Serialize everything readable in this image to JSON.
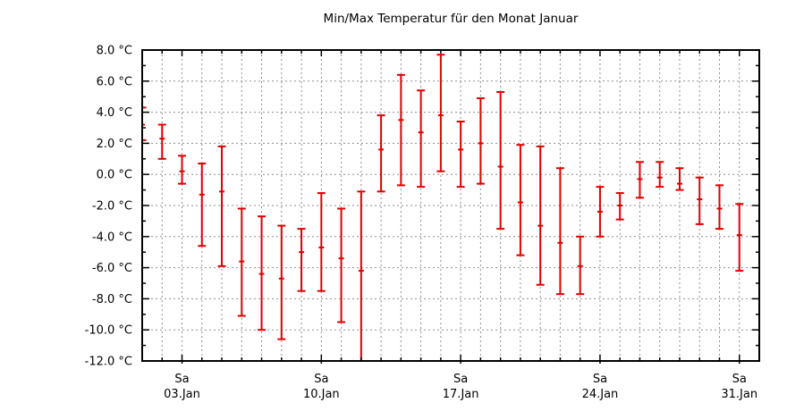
{
  "title": "Min/Max Temperatur für den Monat Januar",
  "colors": {
    "bar": "#e00000",
    "grid": "#8f8f8f",
    "axis": "#000000",
    "text": "#000000",
    "background": "#ffffff"
  },
  "chart_data": {
    "type": "errorbar",
    "title": "Min/Max Temperatur für den Monat Januar",
    "xlabel": "",
    "ylabel": "",
    "x_range": [
      "01.Jan",
      "01.Feb"
    ],
    "ylim": [
      -12.0,
      8.0
    ],
    "y_major_step": 2,
    "y_minor_step": 1,
    "y_tick_labels": [
      "8.0 °C",
      "6.0 °C",
      "4.0 °C",
      "2.0 °C",
      "0.0 °C",
      "-2.0 °C",
      "-4.0 °C",
      "-6.0 °C",
      "-8.0 °C",
      "-10.0 °C",
      "-12.0 °C"
    ],
    "x_major_ticks": [
      {
        "day": 3,
        "weekday": "Sa",
        "date": "03.Jan"
      },
      {
        "day": 10,
        "weekday": "Sa",
        "date": "10.Jan"
      },
      {
        "day": 17,
        "weekday": "Sa",
        "date": "17.Jan"
      },
      {
        "day": 24,
        "weekday": "Sa",
        "date": "24.Jan"
      },
      {
        "day": 31,
        "weekday": "Sa",
        "date": "31.Jan"
      }
    ],
    "grid": true,
    "legend": "none",
    "days": [
      1,
      2,
      3,
      4,
      5,
      6,
      7,
      8,
      9,
      10,
      11,
      12,
      13,
      14,
      15,
      16,
      17,
      18,
      19,
      20,
      21,
      22,
      23,
      24,
      25,
      26,
      27,
      28,
      29,
      30,
      31
    ],
    "max": [
      4.3,
      3.2,
      1.2,
      0.7,
      1.8,
      -2.2,
      -2.7,
      -3.3,
      -3.5,
      -1.2,
      -2.2,
      -1.1,
      3.8,
      6.4,
      5.4,
      7.7,
      3.4,
      4.9,
      5.3,
      1.9,
      1.8,
      0.4,
      -4.0,
      -0.8,
      -1.2,
      0.8,
      0.8,
      0.4,
      -0.2,
      -0.7,
      -1.9
    ],
    "avg": [
      3.2,
      2.3,
      0.2,
      -1.3,
      -1.1,
      -5.6,
      -6.4,
      -6.7,
      -5.0,
      -4.7,
      -5.4,
      -6.2,
      1.6,
      3.5,
      2.7,
      3.8,
      1.6,
      2.0,
      0.5,
      -1.8,
      -3.3,
      -4.4,
      -5.9,
      -2.4,
      -2.0,
      -0.3,
      -0.2,
      -0.6,
      -1.6,
      -2.2,
      -3.9
    ],
    "min": [
      2.2,
      1.0,
      -0.6,
      -4.6,
      -5.9,
      -9.1,
      -10.0,
      -10.6,
      -7.5,
      -7.5,
      -9.5,
      -12.6,
      -1.1,
      -0.7,
      -0.8,
      0.2,
      -0.8,
      -0.6,
      -3.5,
      -5.2,
      -7.1,
      -7.7,
      -7.7,
      -4.0,
      -2.9,
      -1.5,
      -0.8,
      -1.0,
      -3.2,
      -3.5,
      -6.2
    ]
  }
}
